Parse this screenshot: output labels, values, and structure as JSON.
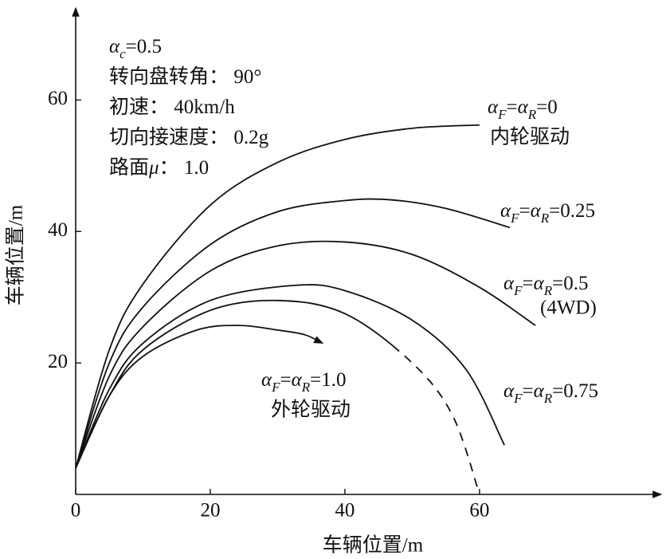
{
  "chart_data": {
    "type": "line",
    "xlabel": "车辆位置/m",
    "ylabel": "车辆位置/m",
    "xlim": [
      0,
      87
    ],
    "ylim": [
      0,
      74
    ],
    "xticks": [
      0,
      20,
      40,
      60
    ],
    "yticks": [
      20,
      40,
      60
    ],
    "color": "#111111",
    "parameters": [
      "αc=0.5",
      "转向盘转角： 90°",
      "初速： 40km/h",
      "切向接速度： 0.2g",
      "路面μ： 1.0"
    ],
    "annotations": [
      "内轮驱动",
      "(4WD)",
      "外轮驱动"
    ],
    "series": [
      {
        "name": "αF=αR=0",
        "x": [
          0,
          5,
          10,
          20,
          30,
          40,
          50,
          60
        ],
        "values": [
          4,
          22,
          32,
          44,
          50.5,
          54,
          55.7,
          56.2
        ]
      },
      {
        "name": "αF=αR=0.25",
        "x": [
          0,
          5,
          10,
          20,
          30,
          40,
          47,
          55,
          64.5
        ],
        "values": [
          4,
          20,
          28.5,
          38,
          43,
          44.7,
          44.8,
          43.5,
          40.6
        ]
      },
      {
        "name": "αF=αR=0.5",
        "x": [
          0,
          5,
          10,
          20,
          30,
          40,
          50,
          60,
          68.3
        ],
        "values": [
          4,
          18,
          25.5,
          34,
          37.8,
          38.4,
          36.5,
          31.5,
          25.7
        ]
      },
      {
        "name": "αF=αR=0.75",
        "x": [
          0,
          5,
          10,
          20,
          32.5,
          40,
          50,
          58,
          63.7
        ],
        "values": [
          4,
          16,
          23,
          29.5,
          31.8,
          31,
          26.5,
          19,
          7.5
        ]
      },
      {
        "x": [
          0,
          5,
          10,
          20,
          30,
          40,
          50,
          56,
          60
        ],
        "values": [
          4,
          15,
          22,
          28,
          29.5,
          27.5,
          20,
          12,
          0
        ],
        "dash_after_x": 48
      },
      {
        "name": "αF=αR=1.0",
        "x": [
          0,
          5,
          10,
          18,
          24.3,
          30,
          34,
          36.7
        ],
        "values": [
          4,
          15,
          21,
          25,
          25.7,
          25,
          24.3,
          23
        ]
      }
    ]
  }
}
